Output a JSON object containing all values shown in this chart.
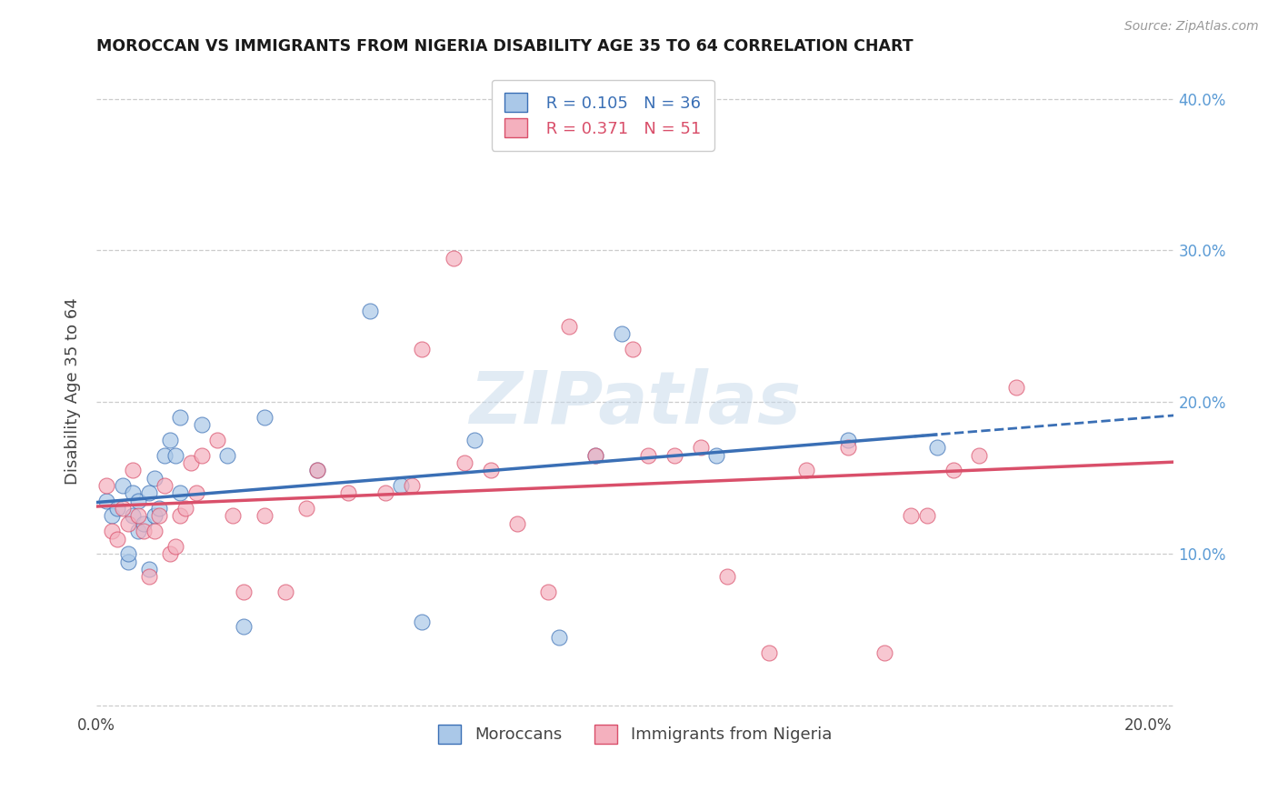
{
  "title": "MOROCCAN VS IMMIGRANTS FROM NIGERIA DISABILITY AGE 35 TO 64 CORRELATION CHART",
  "source": "Source: ZipAtlas.com",
  "ylabel": "Disability Age 35 to 64",
  "xlim": [
    0.0,
    0.205
  ],
  "ylim": [
    -0.005,
    0.42
  ],
  "x_ticks": [
    0.0,
    0.04,
    0.08,
    0.12,
    0.16,
    0.2
  ],
  "x_tick_labels": [
    "0.0%",
    "",
    "",
    "",
    "",
    "20.0%"
  ],
  "y_ticks_right": [
    0.0,
    0.1,
    0.2,
    0.3,
    0.4
  ],
  "y_tick_labels_right": [
    "",
    "10.0%",
    "20.0%",
    "30.0%",
    "40.0%"
  ],
  "blue_R": "0.105",
  "blue_N": "36",
  "pink_R": "0.371",
  "pink_N": "51",
  "blue_color": "#aac8e8",
  "pink_color": "#f4b0be",
  "blue_line_color": "#3a6fb5",
  "pink_line_color": "#d94f6a",
  "legend_label_blue": "Moroccans",
  "legend_label_pink": "Immigrants from Nigeria",
  "blue_x": [
    0.002,
    0.003,
    0.004,
    0.005,
    0.006,
    0.006,
    0.007,
    0.007,
    0.008,
    0.008,
    0.009,
    0.01,
    0.01,
    0.011,
    0.011,
    0.012,
    0.013,
    0.014,
    0.015,
    0.016,
    0.016,
    0.02,
    0.025,
    0.028,
    0.032,
    0.042,
    0.052,
    0.058,
    0.062,
    0.072,
    0.088,
    0.095,
    0.1,
    0.118,
    0.143,
    0.16
  ],
  "blue_y": [
    0.135,
    0.125,
    0.13,
    0.145,
    0.095,
    0.1,
    0.125,
    0.14,
    0.115,
    0.135,
    0.12,
    0.09,
    0.14,
    0.125,
    0.15,
    0.13,
    0.165,
    0.175,
    0.165,
    0.14,
    0.19,
    0.185,
    0.165,
    0.052,
    0.19,
    0.155,
    0.26,
    0.145,
    0.055,
    0.175,
    0.045,
    0.165,
    0.245,
    0.165,
    0.175,
    0.17
  ],
  "pink_x": [
    0.002,
    0.003,
    0.004,
    0.005,
    0.006,
    0.007,
    0.008,
    0.009,
    0.01,
    0.011,
    0.012,
    0.013,
    0.014,
    0.015,
    0.016,
    0.017,
    0.018,
    0.019,
    0.02,
    0.023,
    0.026,
    0.028,
    0.032,
    0.036,
    0.04,
    0.042,
    0.048,
    0.055,
    0.06,
    0.062,
    0.068,
    0.07,
    0.075,
    0.08,
    0.086,
    0.09,
    0.095,
    0.102,
    0.105,
    0.11,
    0.115,
    0.12,
    0.128,
    0.135,
    0.143,
    0.15,
    0.155,
    0.158,
    0.163,
    0.168,
    0.175
  ],
  "pink_y": [
    0.145,
    0.115,
    0.11,
    0.13,
    0.12,
    0.155,
    0.125,
    0.115,
    0.085,
    0.115,
    0.125,
    0.145,
    0.1,
    0.105,
    0.125,
    0.13,
    0.16,
    0.14,
    0.165,
    0.175,
    0.125,
    0.075,
    0.125,
    0.075,
    0.13,
    0.155,
    0.14,
    0.14,
    0.145,
    0.235,
    0.295,
    0.16,
    0.155,
    0.12,
    0.075,
    0.25,
    0.165,
    0.235,
    0.165,
    0.165,
    0.17,
    0.085,
    0.035,
    0.155,
    0.17,
    0.035,
    0.125,
    0.125,
    0.155,
    0.165,
    0.21
  ],
  "watermark": "ZIPatlas",
  "background_color": "#ffffff",
  "grid_color": "#cccccc"
}
